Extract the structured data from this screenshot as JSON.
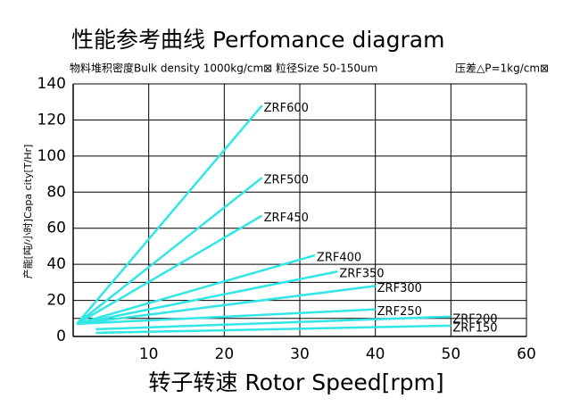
{
  "chart_data": {
    "type": "line",
    "title": "性能参考曲线 Perfomance diagram",
    "subtitle": "物料堆积密度Bulk density 1000kg/cm⊠ 粒径Size 50-150um",
    "annotation": "压差△P=1kg/cm⊠",
    "x_label": "转子转速 Rotor Speed[rpm]",
    "y_label": "产能[吨/小时]Capa city[T/Hr]",
    "xlim": [
      0,
      60
    ],
    "ylim": [
      0,
      140
    ],
    "xticks": [
      10,
      20,
      30,
      40,
      50,
      60
    ],
    "yticks": [
      0,
      20,
      40,
      60,
      80,
      100,
      120,
      140
    ],
    "minor_grid": [
      10,
      30
    ],
    "grid": true,
    "series": [
      {
        "name": "ZRF600",
        "color": "#33e6e6",
        "x": [
          0.5,
          25
        ],
        "values": [
          7,
          128
        ]
      },
      {
        "name": "ZRF500",
        "color": "#33e6e6",
        "x": [
          0.5,
          25
        ],
        "values": [
          7,
          88
        ]
      },
      {
        "name": "ZRF450",
        "color": "#33e6e6",
        "x": [
          0.5,
          25
        ],
        "values": [
          7,
          67
        ]
      },
      {
        "name": "ZRF400",
        "color": "#33e6e6",
        "x": [
          0.5,
          32
        ],
        "values": [
          7,
          45
        ]
      },
      {
        "name": "ZRF350",
        "color": "#33e6e6",
        "x": [
          0.5,
          35
        ],
        "values": [
          7,
          36
        ]
      },
      {
        "name": "ZRF300",
        "color": "#33e6e6",
        "x": [
          0.5,
          40
        ],
        "values": [
          7,
          28
        ]
      },
      {
        "name": "ZRF250",
        "color": "#33e6e6",
        "x": [
          0.5,
          40
        ],
        "values": [
          7,
          15
        ]
      },
      {
        "name": "ZRF200",
        "color": "#33e6e6",
        "x": [
          3,
          50
        ],
        "values": [
          4,
          11
        ]
      },
      {
        "name": "ZRF150",
        "color": "#33e6e6",
        "x": [
          3,
          50
        ],
        "values": [
          2,
          6
        ]
      }
    ]
  }
}
